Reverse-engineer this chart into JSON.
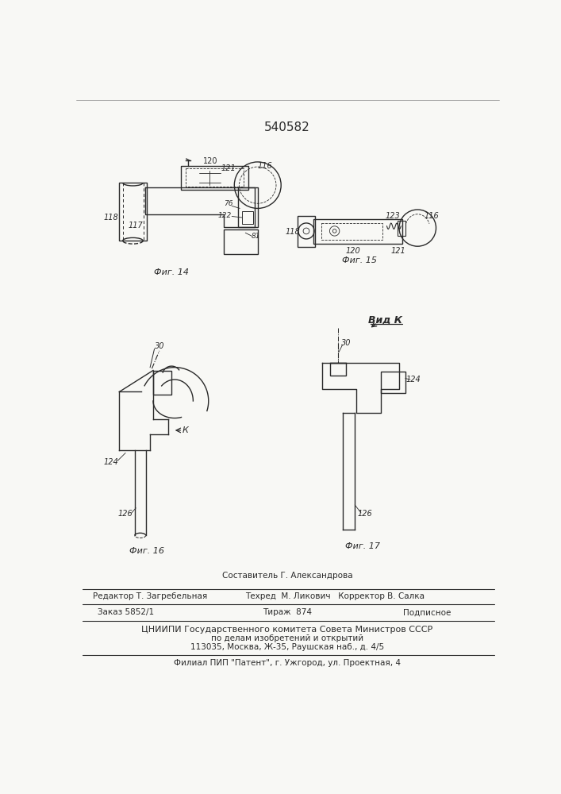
{
  "title_number": "540582",
  "bg_color": "#f8f8f5",
  "line_color": "#2a2a2a",
  "footer": {
    "line1_left": "Редактор Т. Загребельная",
    "line1_center": "Составитель Г. Александрова",
    "line2_center": "Техред  М. Ликович   Корректор В. Салка",
    "line3_left": "Заказ 5852/1",
    "line3_center": "Тираж  874",
    "line3_right": "Подписное",
    "line4": "ЦНИИПИ Государственного комитета Совета Министров СССР",
    "line5": "по делам изобретений и открытий",
    "line6": "113035, Москва, Ж-35, Раушская наб., д. 4/5",
    "line7": "Филиал ПИП \"Патент\", г. Ужгород, ул. Проектная, 4"
  },
  "fig14_label": "Фиг. 14",
  "fig15_label": "Фиг. 15",
  "fig16_label": "Фиг. 16",
  "fig17_label": "Фиг. 17",
  "vid_k_label": "Вид К"
}
